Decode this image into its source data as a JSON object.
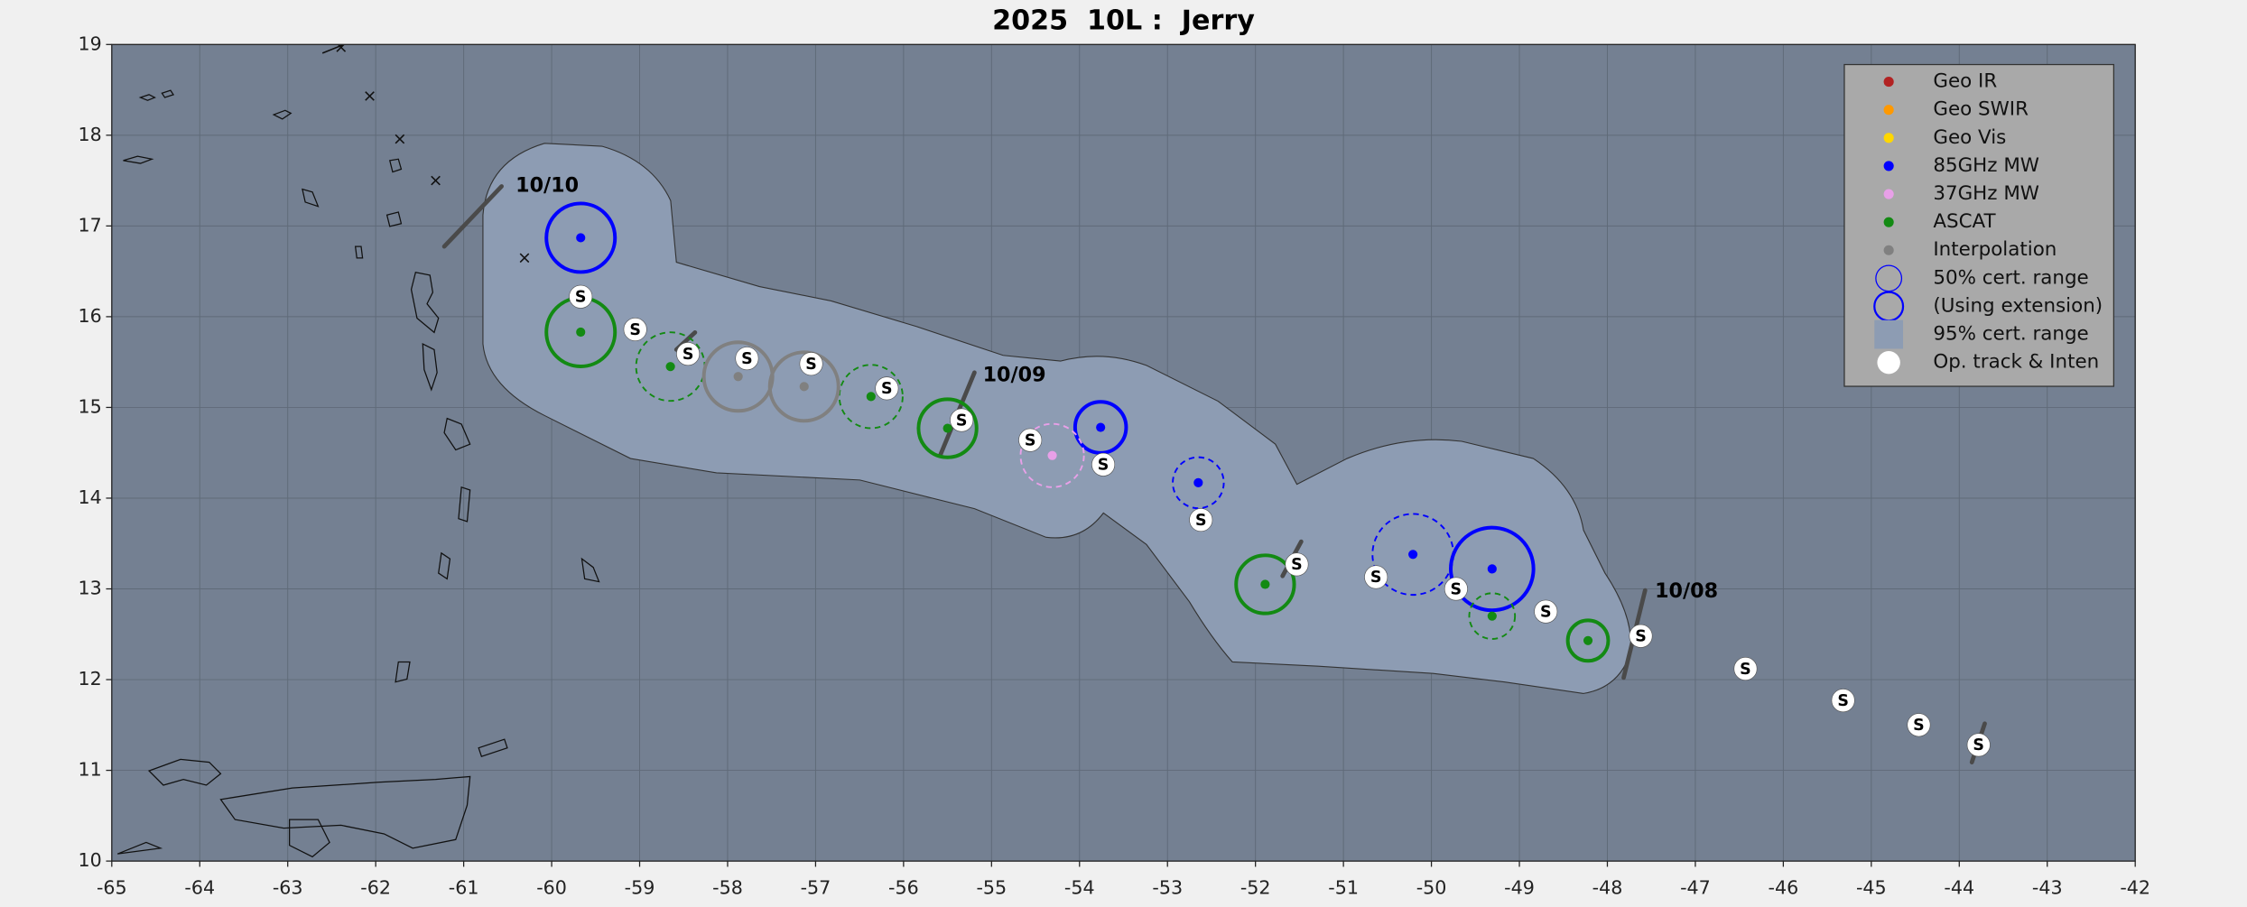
{
  "chart_data": {
    "type": "scatter",
    "title": "2025  10L :  Jerry",
    "xlim": [
      -65,
      -42
    ],
    "ylim": [
      10,
      19
    ],
    "xticks": [
      -65,
      -64,
      -63,
      -62,
      -61,
      -60,
      -59,
      -58,
      -57,
      -56,
      -55,
      -54,
      -53,
      -52,
      -51,
      -50,
      -49,
      -48,
      -47,
      -46,
      -45,
      -44,
      -43,
      -42
    ],
    "yticks": [
      10,
      11,
      12,
      13,
      14,
      15,
      16,
      17,
      18,
      19
    ],
    "grid": true,
    "legend_position": "upper right",
    "series": [
      {
        "name": "Geo IR",
        "color": "#b22222",
        "x": [],
        "values": [],
        "radius": [],
        "dashed": []
      },
      {
        "name": "Geo SWIR",
        "color": "#ff9900",
        "x": [],
        "values": [],
        "radius": [],
        "dashed": []
      },
      {
        "name": "Geo Vis",
        "color": "#ffd700",
        "x": [],
        "values": [],
        "radius": [],
        "dashed": []
      },
      {
        "name": "85GHz MW",
        "color": "#0000ff",
        "x": [
          -59.67,
          -53.76,
          -52.65,
          -50.21,
          -49.31
        ],
        "values": [
          16.87,
          14.78,
          14.17,
          13.38,
          13.22
        ],
        "radius": [
          0.39,
          0.29,
          0.29,
          0.46,
          0.47
        ],
        "dashed": [
          false,
          false,
          true,
          true,
          false
        ]
      },
      {
        "name": "37GHz MW",
        "color": "#e8a0e8",
        "x": [
          -54.31
        ],
        "values": [
          14.47
        ],
        "radius": [
          0.36
        ],
        "dashed": [
          true
        ]
      },
      {
        "name": "ASCAT",
        "color": "#138a13",
        "x": [
          -59.67,
          -58.65,
          -56.37,
          -55.5,
          -51.89,
          -49.31,
          -48.22
        ],
        "values": [
          15.83,
          15.45,
          15.12,
          14.77,
          13.05,
          12.7,
          12.43
        ],
        "radius": [
          0.39,
          0.39,
          0.36,
          0.33,
          0.33,
          0.26,
          0.23
        ],
        "dashed": [
          false,
          true,
          true,
          false,
          false,
          true,
          false
        ]
      },
      {
        "name": "Interpolation",
        "color": "#808080",
        "x": [
          -57.88,
          -57.13
        ],
        "values": [
          15.34,
          15.23
        ],
        "radius": [
          0.39,
          0.39
        ],
        "dashed": [
          false,
          false
        ]
      }
    ],
    "legend_extras": [
      {
        "name": "50% cert. range",
        "color": "#0000ff",
        "marker": "ring"
      },
      {
        "name": "(Using extension)",
        "color": "#0000ff",
        "marker": "thick-ring"
      },
      {
        "name": "95% cert. range",
        "color": "#8d9cb3",
        "marker": "square"
      },
      {
        "name": "Op. track & Inten",
        "color": "#ffffff",
        "marker": "disc"
      }
    ],
    "track": {
      "x": [
        -59.67,
        -59.05,
        -58.45,
        -57.78,
        -57.05,
        -56.19,
        -55.34,
        -54.56,
        -53.73,
        -52.62,
        -51.53,
        -50.63,
        -49.72,
        -48.7,
        -47.62,
        -46.43,
        -45.32,
        -44.46,
        -43.78
      ],
      "values": [
        16.22,
        15.86,
        15.59,
        15.54,
        15.48,
        15.21,
        14.86,
        14.64,
        14.37,
        13.76,
        13.27,
        13.13,
        13.0,
        12.75,
        12.48,
        12.12,
        11.77,
        11.5,
        11.28
      ],
      "labels": [
        "S",
        "S",
        "S",
        "S",
        "S",
        "S",
        "S",
        "S",
        "S",
        "S",
        "S",
        "S",
        "S",
        "S",
        "S",
        "S",
        "S",
        "S",
        "S"
      ]
    },
    "dates": [
      {
        "label": "10/10",
        "x": -60.41,
        "y": 17.44
      },
      {
        "label": "10/09",
        "x": -55.1,
        "y": 15.35
      },
      {
        "label": "10/08",
        "x": -47.46,
        "y": 12.97
      }
    ]
  }
}
